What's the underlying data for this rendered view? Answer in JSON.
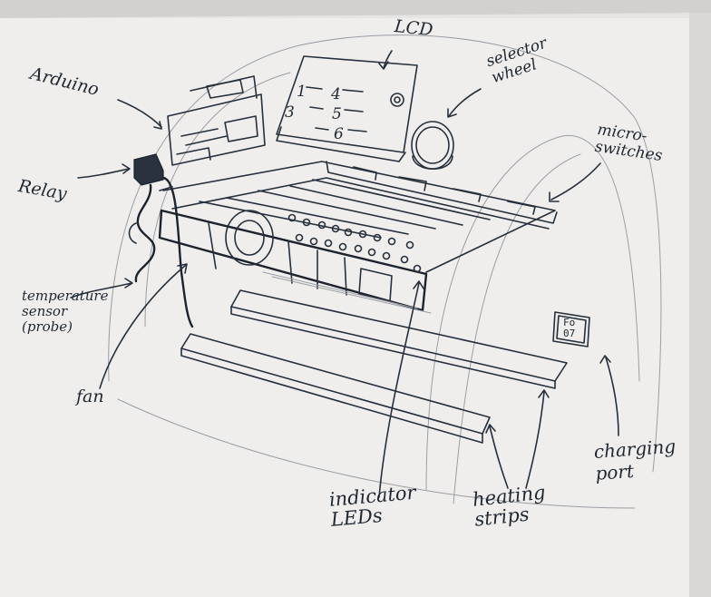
{
  "sketch": {
    "labels": {
      "lcd": "LCD",
      "selector_wheel": "selector\nwheel",
      "micro_switches": "micro-\nswitches",
      "arduino": "Arduino",
      "relay": "Relay",
      "temperature_sensor": "temperature\nsensor\n(probe)",
      "fan": "fan",
      "indicator_leds": "indicator\nLEDs",
      "heating_strips": "heating\nstrips",
      "charging_port": "charging\nport"
    },
    "lcd_screen": {
      "row1": [
        "1",
        "4"
      ],
      "row2": [
        "3",
        "5"
      ],
      "row3": [
        "",
        "6"
      ]
    },
    "port_text": [
      "Fo",
      "07"
    ]
  }
}
